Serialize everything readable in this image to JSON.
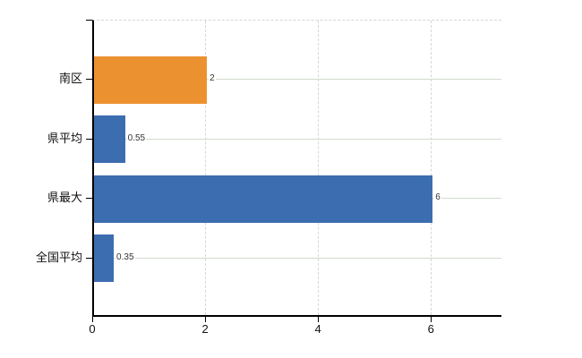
{
  "chart": {
    "background_color": "#ffffff",
    "axis_color": "#000000",
    "horizontal_grid_color": "#d1dccc",
    "vertical_grid_color": "#d6d6d6",
    "value_label_color": "#333333",
    "tick_label_color": "#111111"
  },
  "chart_data": {
    "type": "bar",
    "orientation": "horizontal",
    "title": "",
    "xlabel": "",
    "ylabel": "",
    "categories": [
      "南区",
      "県平均",
      "県最大",
      "全国平均"
    ],
    "values": [
      2,
      0.55,
      6,
      0.35
    ],
    "value_labels": [
      "2",
      "0.55",
      "6",
      "0.35"
    ],
    "bar_colors": [
      "#ec9130",
      "#3c6db0",
      "#3c6db0",
      "#3c6db0"
    ],
    "highlight_color": "#ec9130",
    "default_color": "#3c6db0",
    "x_tick_labels": [
      "0",
      "2",
      "4",
      "6"
    ],
    "x_tick_values": [
      0,
      2,
      4,
      6
    ],
    "xlim": [
      0,
      7.25
    ],
    "grid": true,
    "legend": "none"
  }
}
